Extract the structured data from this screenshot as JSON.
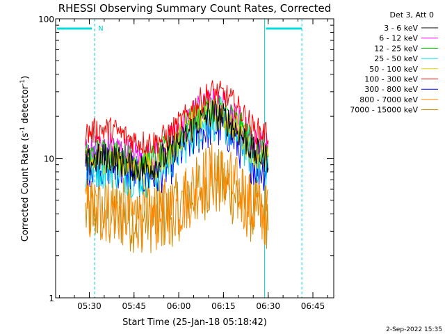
{
  "chart_data": {
    "type": "line",
    "title": "RHESSI Observing Summary Count Rates, Corrected",
    "xlabel": "Start Time (25-Jan-18 05:18:42)",
    "ylabel": "Corrected Count Rate (s",
    "ylabel_sup1": "-1",
    "ylabel_mid": " detector",
    "ylabel_sup2": "-1",
    "ylabel_end": ")",
    "y_scale": "log",
    "ylim": [
      1,
      100
    ],
    "xlim_minutes": [
      0,
      93.3
    ],
    "x_ticks": [
      {
        "minute": 11.3,
        "label": "05:30"
      },
      {
        "minute": 26.3,
        "label": "05:45"
      },
      {
        "minute": 41.3,
        "label": "06:00"
      },
      {
        "minute": 56.3,
        "label": "06:15"
      },
      {
        "minute": 71.3,
        "label": "06:30"
      },
      {
        "minute": 86.3,
        "label": "06:45"
      }
    ],
    "y_ticks": [
      {
        "value": 1,
        "label": "1"
      },
      {
        "value": 10,
        "label": "10"
      },
      {
        "value": 100,
        "label": "100"
      }
    ],
    "legend_header": "Det 3, Att 0",
    "legend_placement": "top-right",
    "series": [
      {
        "name": "3 - 6 keV",
        "color": "#000000",
        "values": [
          9,
          10,
          10,
          9,
          8.5,
          9,
          11,
          14,
          18,
          21,
          19,
          15,
          11,
          10
        ],
        "noise": 1.3
      },
      {
        "name": "6 - 12 keV",
        "color": "#ff00ff",
        "values": [
          11,
          12,
          12,
          11,
          10,
          10.5,
          13,
          17,
          22,
          25,
          23,
          18,
          13,
          12
        ],
        "noise": 1.3
      },
      {
        "name": "12 - 25 keV",
        "color": "#00cc00",
        "values": [
          10,
          11,
          11,
          10,
          9.5,
          10,
          12,
          16,
          20,
          23,
          21,
          17,
          12,
          11
        ],
        "noise": 1.3
      },
      {
        "name": "25 - 50 keV",
        "color": "#00dddd",
        "values": [
          8,
          9,
          9,
          8,
          7.5,
          8,
          10,
          13,
          17,
          20,
          18,
          14,
          10,
          9
        ],
        "noise": 1.5
      },
      {
        "name": "50 - 100 keV",
        "color": "#e6d000",
        "values": [
          9,
          10,
          10,
          9,
          8.5,
          9,
          11,
          15,
          19,
          21,
          19,
          15,
          11,
          10
        ],
        "noise": 1.3
      },
      {
        "name": "100 - 300 keV",
        "color": "#ff0000",
        "values": [
          15,
          16,
          16,
          14,
          13,
          13,
          15,
          19,
          25,
          30,
          28,
          22,
          16,
          15
        ],
        "noise": 1.25
      },
      {
        "name": "300 - 800 keV",
        "color": "#0000ff",
        "values": [
          9,
          9,
          9,
          8,
          7.5,
          7.5,
          9,
          12,
          15,
          17,
          16,
          12,
          9,
          8
        ],
        "noise": 1.45
      },
      {
        "name": "800 - 7000 keV",
        "color": "#ff8800",
        "values": [
          4.2,
          4.3,
          4.2,
          4,
          3.8,
          3.8,
          4.2,
          5,
          6.5,
          7.5,
          7,
          5.5,
          4.3,
          4.1
        ],
        "noise": 1.8
      },
      {
        "name": "7000 - 15000 keV",
        "color": "#cc8800",
        "values": [
          4,
          4.1,
          4,
          3.8,
          3.7,
          3.7,
          4,
          4.8,
          6,
          6.8,
          6.4,
          5.2,
          4.1,
          3.9
        ],
        "noise": 1.8
      }
    ],
    "data_start_minute": 10.0,
    "data_end_minute": 71.3,
    "annotations": [
      {
        "type": "night-marker",
        "minute": 13.1,
        "label": "N"
      },
      {
        "type": "saa-marker",
        "minute": 70.1
      },
      {
        "type": "saa-marker",
        "minute": 82.6
      }
    ],
    "timestamp": "2-Sep-2022 15:35"
  }
}
